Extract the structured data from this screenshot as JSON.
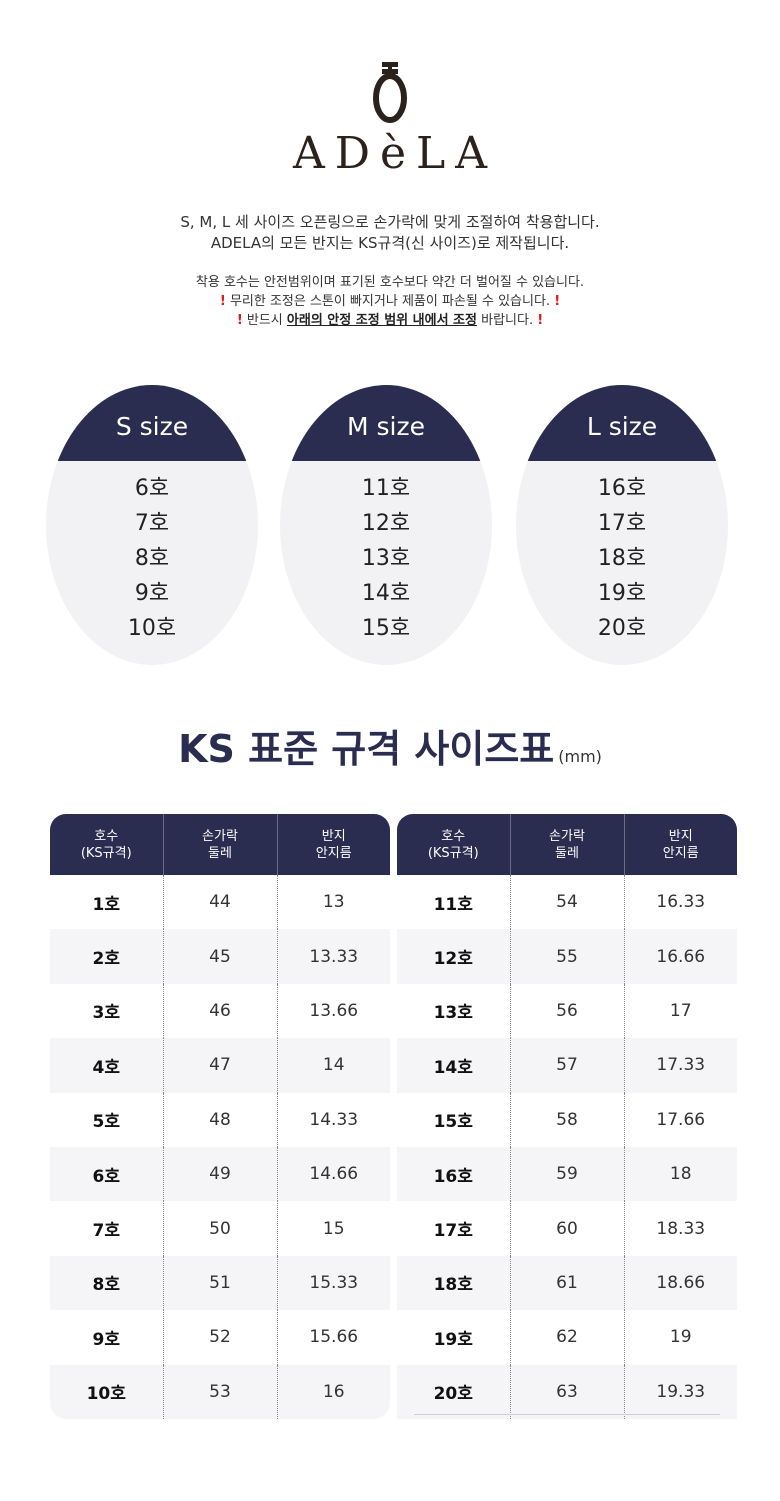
{
  "brand": {
    "name": "ADèLA"
  },
  "intro": {
    "line1": "S, M, L 세 사이즈 오픈링으로 손가락에 맞게 조절하여 착용합니다.",
    "line2": "ADELA의 모든 반지는 KS규격(신 사이즈)로 제작됩니다."
  },
  "notes": {
    "line1": "착용 호수는 안전범위이며 표기된 호수보다 약간 더 벌어질 수 있습니다.",
    "line2": "무리한 조정은 스톤이 빠지거나 제품이 파손될 수 있습니다.",
    "line3_pre": "반드시 ",
    "line3_underlined": "아래의 안정 조정 범위 내에서 조정",
    "line3_post": " 바랍니다.",
    "warn_mark": "!"
  },
  "sizes": [
    {
      "label": "S size",
      "values": [
        "6호",
        "7호",
        "8호",
        "9호",
        "10호"
      ]
    },
    {
      "label": "M size",
      "values": [
        "11호",
        "12호",
        "13호",
        "14호",
        "15호"
      ]
    },
    {
      "label": "L size",
      "values": [
        "16호",
        "17호",
        "18호",
        "19호",
        "20호"
      ]
    }
  ],
  "table": {
    "title": "KS 표준 규격 사이즈표",
    "unit": "(mm)",
    "headers": [
      {
        "line1": "호수",
        "line2": "(KS규격)"
      },
      {
        "line1": "손가락",
        "line2": "둘레"
      },
      {
        "line1": "반지",
        "line2": "안지름"
      }
    ],
    "left_rows": [
      [
        "1호",
        "44",
        "13"
      ],
      [
        "2호",
        "45",
        "13.33"
      ],
      [
        "3호",
        "46",
        "13.66"
      ],
      [
        "4호",
        "47",
        "14"
      ],
      [
        "5호",
        "48",
        "14.33"
      ],
      [
        "6호",
        "49",
        "14.66"
      ],
      [
        "7호",
        "50",
        "15"
      ],
      [
        "8호",
        "51",
        "15.33"
      ],
      [
        "9호",
        "52",
        "15.66"
      ],
      [
        "10호",
        "53",
        "16"
      ]
    ],
    "right_rows": [
      [
        "11호",
        "54",
        "16.33"
      ],
      [
        "12호",
        "55",
        "16.66"
      ],
      [
        "13호",
        "56",
        "17"
      ],
      [
        "14호",
        "57",
        "17.33"
      ],
      [
        "15호",
        "58",
        "17.66"
      ],
      [
        "16호",
        "59",
        "18"
      ],
      [
        "17호",
        "60",
        "18.33"
      ],
      [
        "18호",
        "61",
        "18.66"
      ],
      [
        "19호",
        "62",
        "19"
      ],
      [
        "20호",
        "63",
        "19.33"
      ]
    ]
  },
  "colors": {
    "navy": "#2a2d4f",
    "warn": "#e01818",
    "card_bg": "#f2f2f4",
    "row_alt": "#f5f5f7"
  }
}
